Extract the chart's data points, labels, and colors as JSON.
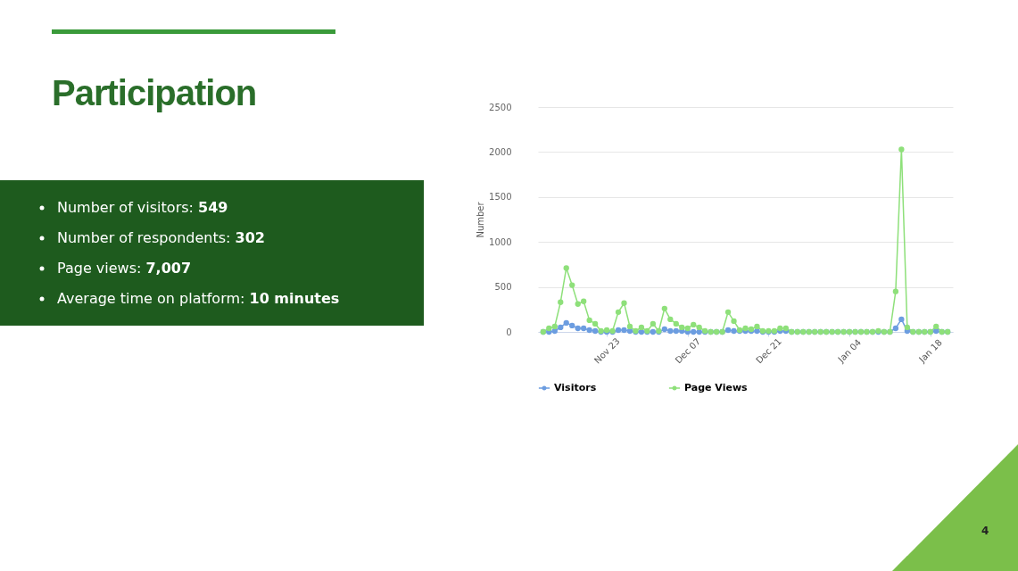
{
  "chart_data": [
    {
      "type": "other",
      "title": "Participation",
      "annotations": [
        "Number of visitors: 549",
        "Number of respondents: 302",
        "Page views: 7,007",
        "Average time on platform: 10 minutes"
      ]
    },
    {
      "type": "line",
      "ylabel": "Number",
      "grid": "y",
      "legend": "bottom",
      "marker": "circle",
      "categories": [
        null,
        null,
        null,
        null,
        null,
        null,
        null,
        null,
        null,
        null,
        null,
        "Nov 23",
        null,
        null,
        null,
        null,
        null,
        null,
        null,
        null,
        null,
        null,
        null,
        null,
        null,
        "Dec 07",
        null,
        null,
        null,
        null,
        null,
        null,
        null,
        null,
        null,
        null,
        null,
        null,
        null,
        "Dec 21",
        null,
        null,
        null,
        null,
        null,
        null,
        null,
        null,
        null,
        null,
        null,
        null,
        null,
        "Jan 04",
        null,
        null,
        null,
        null,
        null,
        null,
        null,
        null,
        null,
        null,
        null,
        null,
        null,
        "Jan 18",
        null,
        null,
        null
      ],
      "ylim": [
        0,
        2500
      ],
      "yticks": [
        0,
        500,
        1000,
        1500,
        2000,
        2500
      ],
      "series": [
        {
          "name": "Visitors",
          "color": "#6c9de0",
          "values": [
            0,
            0,
            10,
            50,
            100,
            70,
            40,
            40,
            20,
            10,
            0,
            0,
            0,
            20,
            20,
            10,
            0,
            0,
            0,
            0,
            0,
            30,
            10,
            10,
            10,
            0,
            0,
            0,
            0,
            0,
            0,
            0,
            20,
            10,
            10,
            10,
            10,
            10,
            0,
            0,
            0,
            10,
            10,
            0,
            0,
            0,
            0,
            0,
            0,
            0,
            0,
            0,
            0,
            0,
            0,
            0,
            0,
            0,
            0,
            0,
            0,
            40,
            140,
            10,
            0,
            0,
            0,
            0,
            10,
            0,
            0
          ]
        },
        {
          "name": "Page Views",
          "color": "#8ee07a",
          "values": [
            0,
            40,
            60,
            330,
            710,
            520,
            310,
            340,
            130,
            90,
            10,
            20,
            10,
            220,
            320,
            60,
            10,
            50,
            10,
            90,
            10,
            260,
            140,
            90,
            50,
            40,
            80,
            50,
            10,
            0,
            0,
            0,
            220,
            120,
            20,
            40,
            30,
            60,
            10,
            10,
            10,
            40,
            40,
            0,
            0,
            0,
            0,
            0,
            0,
            0,
            0,
            0,
            0,
            0,
            0,
            0,
            0,
            0,
            10,
            0,
            0,
            450,
            2030,
            50,
            0,
            0,
            0,
            0,
            60,
            0,
            0
          ]
        }
      ]
    },
    {
      "type": "other",
      "annotations": [
        "4"
      ]
    }
  ]
}
